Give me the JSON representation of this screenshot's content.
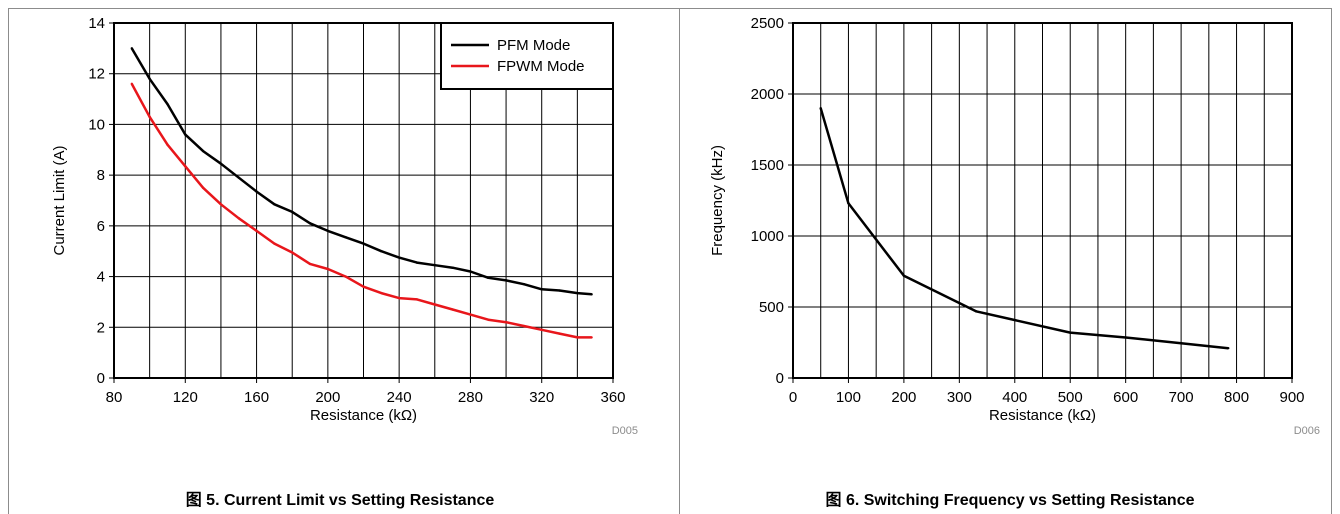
{
  "colors": {
    "black": "#000000",
    "red": "#e8161b",
    "grid": "#000000",
    "code": "#8c8c8c"
  },
  "charts": [
    {
      "caption": "图 5. Current Limit vs Setting Resistance",
      "code": "D005",
      "chart_data": {
        "type": "line",
        "xlabel": "Resistance (kΩ)",
        "ylabel": "Current Limit (A)",
        "xlim": [
          80,
          360
        ],
        "ylim": [
          0,
          14
        ],
        "xticks": [
          80,
          120,
          160,
          200,
          240,
          280,
          320,
          360
        ],
        "yticks": [
          0,
          2,
          4,
          6,
          8,
          10,
          12,
          14
        ],
        "grid": true,
        "legend_position": "top-right",
        "series": [
          {
            "name": "PFM Mode",
            "color": "#000000",
            "x": [
              90,
              100,
              110,
              120,
              130,
              140,
              150,
              160,
              170,
              180,
              190,
              200,
              210,
              220,
              230,
              240,
              250,
              260,
              270,
              280,
              290,
              300,
              310,
              320,
              330,
              340,
              348
            ],
            "y": [
              13.0,
              11.8,
              10.8,
              9.6,
              8.95,
              8.45,
              7.9,
              7.35,
              6.85,
              6.55,
              6.1,
              5.8,
              5.55,
              5.3,
              5.0,
              4.75,
              4.55,
              4.45,
              4.35,
              4.2,
              3.95,
              3.85,
              3.7,
              3.5,
              3.45,
              3.35,
              3.3
            ]
          },
          {
            "name": "FPWM Mode",
            "color": "#e8161b",
            "x": [
              90,
              100,
              110,
              120,
              130,
              140,
              150,
              160,
              170,
              180,
              190,
              200,
              210,
              220,
              230,
              240,
              250,
              260,
              270,
              280,
              290,
              300,
              310,
              320,
              330,
              340,
              348
            ],
            "y": [
              11.6,
              10.3,
              9.2,
              8.35,
              7.5,
              6.85,
              6.3,
              5.8,
              5.3,
              4.95,
              4.5,
              4.3,
              4.0,
              3.6,
              3.35,
              3.15,
              3.1,
              2.9,
              2.7,
              2.5,
              2.3,
              2.2,
              2.05,
              1.9,
              1.75,
              1.6,
              1.6
            ]
          }
        ]
      }
    },
    {
      "caption": "图 6. Switching Frequency vs Setting Resistance",
      "code": "D006",
      "chart_data": {
        "type": "line",
        "xlabel": "Resistance (kΩ)",
        "ylabel": "Frequency (kHz)",
        "xlim": [
          0,
          900
        ],
        "ylim": [
          0,
          2500
        ],
        "xticks": [
          0,
          100,
          200,
          300,
          400,
          500,
          600,
          700,
          800,
          900
        ],
        "yticks": [
          0,
          500,
          1000,
          1500,
          2000,
          2500
        ],
        "grid": true,
        "series": [
          {
            "color": "#000000",
            "x": [
              50,
              100,
              200,
              330,
              500,
              600,
              700,
              785
            ],
            "y": [
              1900,
              1230,
              720,
              470,
              320,
              285,
              245,
              210
            ]
          }
        ]
      }
    }
  ]
}
